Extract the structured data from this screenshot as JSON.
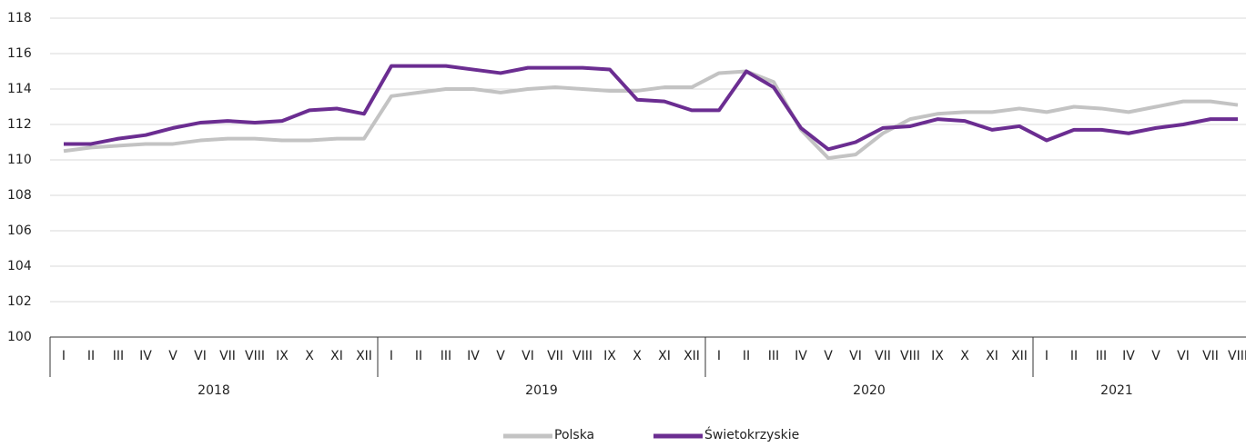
{
  "chart_data": {
    "type": "line",
    "categories": [
      "I",
      "II",
      "III",
      "IV",
      "V",
      "VI",
      "VII",
      "VIII",
      "IX",
      "X",
      "XI",
      "XII",
      "I",
      "II",
      "III",
      "IV",
      "V",
      "VI",
      "VII",
      "VIII",
      "IX",
      "X",
      "XI",
      "XII",
      "I",
      "II",
      "III",
      "IV",
      "V",
      "VI",
      "VII",
      "VIII",
      "IX",
      "X",
      "XI",
      "XII",
      "I",
      "II",
      "III",
      "IV",
      "V",
      "VI",
      "VII",
      "VIII"
    ],
    "category_groups": [
      "2018",
      "2019",
      "2020",
      "2021"
    ],
    "series": [
      {
        "name": "Polska",
        "color": "#c3c3c3",
        "values": [
          110.5,
          110.7,
          110.8,
          110.9,
          110.9,
          111.1,
          111.2,
          111.2,
          111.1,
          111.1,
          111.2,
          111.2,
          113.6,
          113.8,
          114.0,
          114.0,
          113.8,
          114.0,
          114.1,
          114.0,
          113.9,
          113.9,
          114.1,
          114.1,
          114.9,
          115.0,
          114.4,
          111.7,
          110.1,
          110.3,
          111.5,
          112.3,
          112.6,
          112.7,
          112.7,
          112.9,
          112.7,
          113.0,
          112.9,
          112.7,
          113.0,
          113.3,
          113.3,
          113.1
        ]
      },
      {
        "name": "Świetokrzyskie",
        "color": "#6b2d91",
        "values": [
          110.9,
          110.9,
          111.2,
          111.4,
          111.8,
          112.1,
          112.2,
          112.1,
          112.2,
          112.8,
          112.9,
          112.6,
          115.3,
          115.3,
          115.3,
          115.1,
          114.9,
          115.2,
          115.2,
          115.2,
          115.1,
          113.4,
          113.3,
          112.8,
          112.8,
          115.0,
          114.1,
          111.8,
          110.6,
          111.0,
          111.8,
          111.9,
          112.3,
          112.2,
          111.7,
          111.9,
          111.1,
          111.7,
          111.7,
          111.5,
          111.8,
          112.0,
          112.3,
          112.3
        ]
      }
    ],
    "ylim": [
      100,
      118
    ],
    "yticks": [
      100,
      102,
      104,
      106,
      108,
      110,
      112,
      114,
      116,
      118
    ],
    "grid": true,
    "legend": "bottom"
  }
}
